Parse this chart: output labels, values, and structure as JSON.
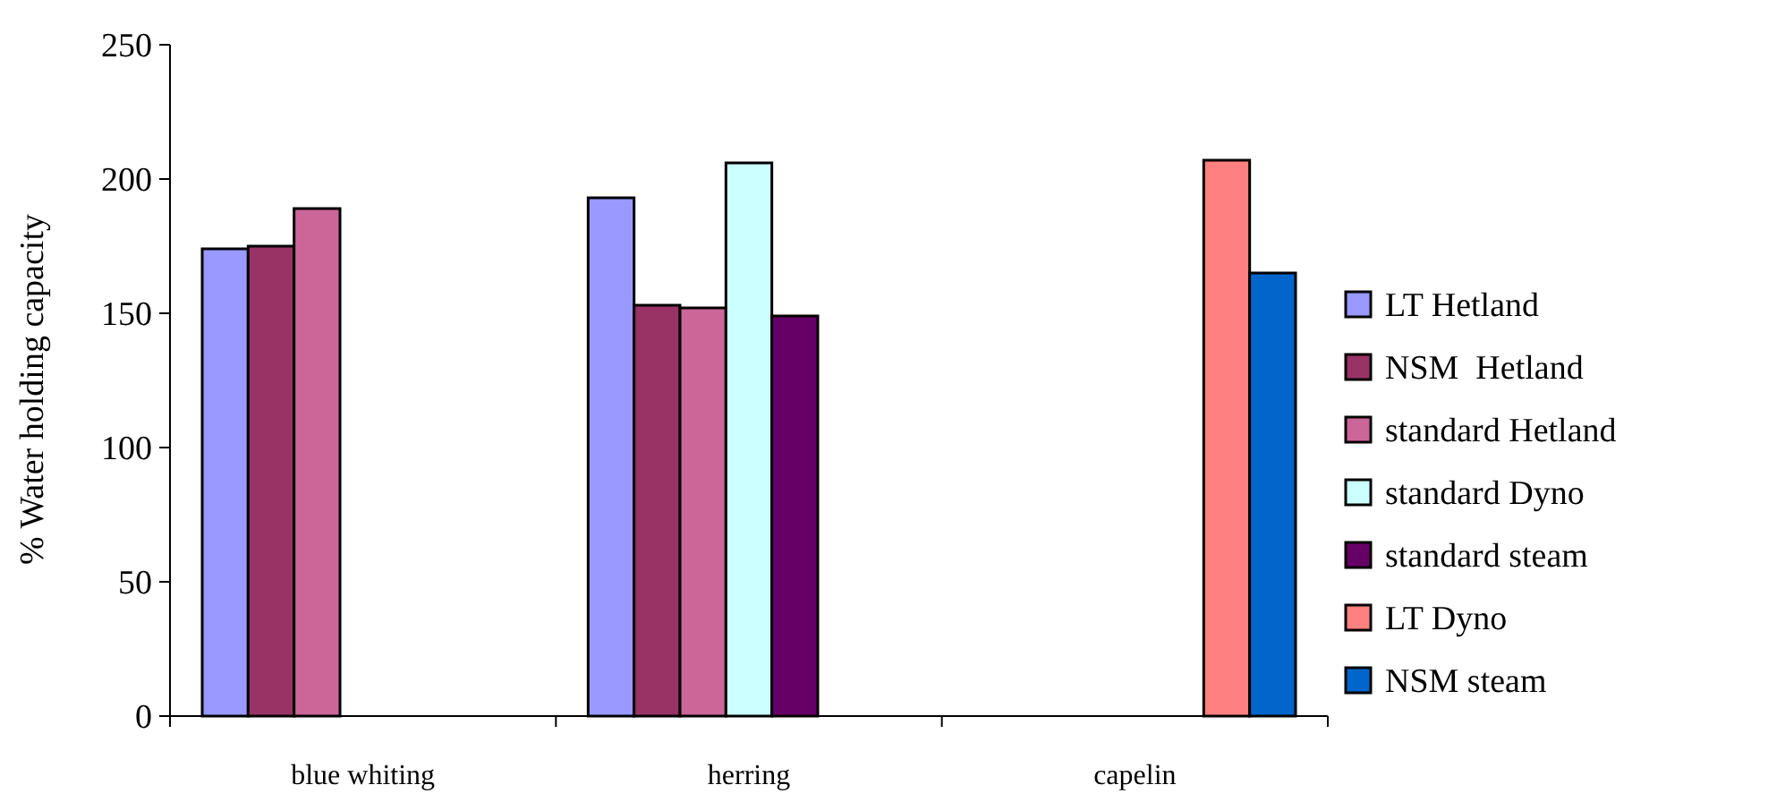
{
  "chart_data": {
    "type": "bar",
    "ylabel": "% Water holding capacity",
    "categories": [
      "blue whiting",
      "herring",
      "capelin"
    ],
    "ylim": [
      0,
      250
    ],
    "yticks": [
      0,
      50,
      100,
      150,
      200,
      250
    ],
    "grid": false,
    "legend": "right",
    "series": [
      {
        "name": "LT Hetland",
        "color": "#9999ff",
        "values": [
          174,
          193,
          null
        ]
      },
      {
        "name": "NSM  Hetland",
        "color": "#993366",
        "values": [
          175,
          153,
          null
        ]
      },
      {
        "name": "standard Hetland",
        "color": "#cc6699",
        "values": [
          189,
          152,
          null
        ]
      },
      {
        "name": "standard Dyno",
        "color": "#ccffff",
        "values": [
          null,
          206,
          null
        ]
      },
      {
        "name": "standard steam",
        "color": "#660066",
        "values": [
          null,
          149,
          null
        ]
      },
      {
        "name": "LT Dyno",
        "color": "#ff8080",
        "values": [
          null,
          null,
          207
        ]
      },
      {
        "name": "NSM steam",
        "color": "#0066cc",
        "values": [
          null,
          null,
          165
        ]
      }
    ]
  }
}
